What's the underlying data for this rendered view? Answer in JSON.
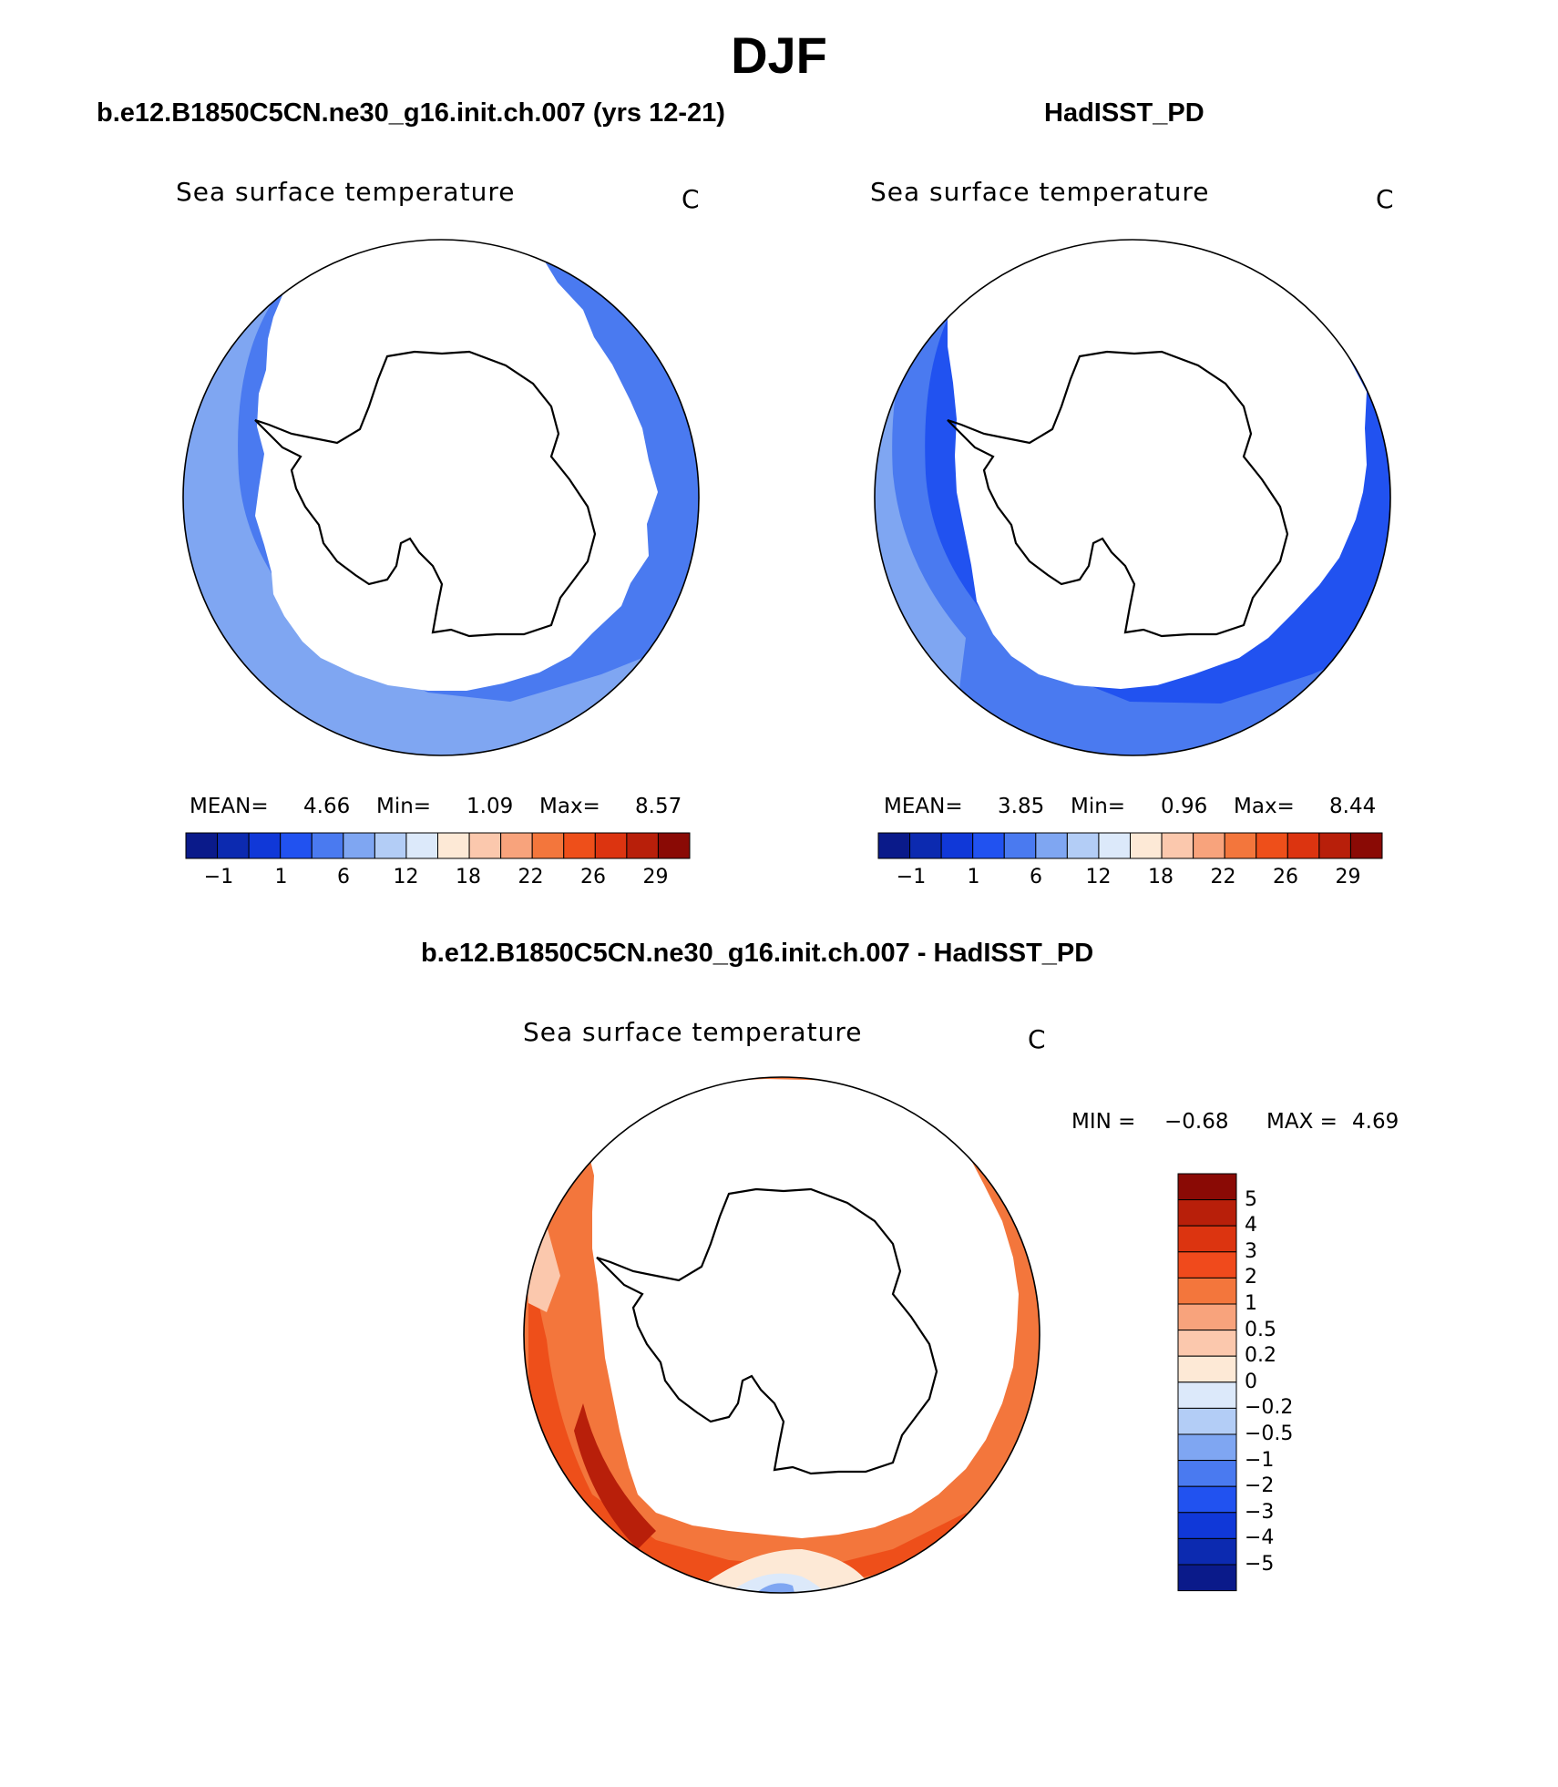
{
  "figure": {
    "title": "DJF"
  },
  "panels": [
    {
      "case_title": "b.e12.B1850C5CN.ne30_g16.init.ch.007 (yrs 12-21)",
      "variable": "Sea surface temperature",
      "units": "C",
      "stats": {
        "mean_label": "MEAN=",
        "mean": "4.66",
        "min_label": "Min=",
        "min": "1.09",
        "max_label": "Max=",
        "max": "8.57"
      },
      "colorbar": {
        "colors": [
          "#0a1a8a",
          "#0c2ab0",
          "#1038d8",
          "#2152f0",
          "#4a7af0",
          "#7fa6f2",
          "#b3cdf6",
          "#dce9fa",
          "#fde9d6",
          "#fbc8ad",
          "#f8a37c",
          "#f3763c",
          "#ee4f1a",
          "#dc3410",
          "#b81f0a",
          "#8a0a05"
        ],
        "tick_labels": [
          "−1",
          "1",
          "6",
          "12",
          "18",
          "22",
          "26",
          "29"
        ]
      }
    },
    {
      "case_title": "HadISST_PD",
      "variable": "Sea surface temperature",
      "units": "C",
      "stats": {
        "mean_label": "MEAN=",
        "mean": "3.85",
        "min_label": "Min=",
        "min": "0.96",
        "max_label": "Max=",
        "max": "8.44"
      },
      "colorbar": {
        "colors": [
          "#0a1a8a",
          "#0c2ab0",
          "#1038d8",
          "#2152f0",
          "#4a7af0",
          "#7fa6f2",
          "#b3cdf6",
          "#dce9fa",
          "#fde9d6",
          "#fbc8ad",
          "#f8a37c",
          "#f3763c",
          "#ee4f1a",
          "#dc3410",
          "#b81f0a",
          "#8a0a05"
        ],
        "tick_labels": [
          "−1",
          "1",
          "6",
          "12",
          "18",
          "22",
          "26",
          "29"
        ]
      }
    },
    {
      "case_title": "b.e12.B1850C5CN.ne30_g16.init.ch.007 - HadISST_PD",
      "variable": "Sea surface temperature",
      "units": "C",
      "stats": {
        "min_label": "MIN =",
        "min": "−0.68",
        "max_label": "MAX =",
        "max": "4.69"
      },
      "colorbar": {
        "colors": [
          "#8a0a05",
          "#b81f0a",
          "#dc3410",
          "#f04a1c",
          "#f3763c",
          "#f8a37c",
          "#fbc8ad",
          "#fde9d6",
          "#dce9fa",
          "#b3cdf6",
          "#7fa6f2",
          "#4a7af0",
          "#2152f0",
          "#1038d8",
          "#0c2ab0",
          "#0a1a8a"
        ],
        "tick_labels": [
          "5",
          "4",
          "3",
          "2",
          "1",
          "0.5",
          "0.2",
          "0",
          "−0.2",
          "−0.5",
          "−1",
          "−2",
          "−3",
          "−4",
          "−5"
        ]
      }
    }
  ]
}
